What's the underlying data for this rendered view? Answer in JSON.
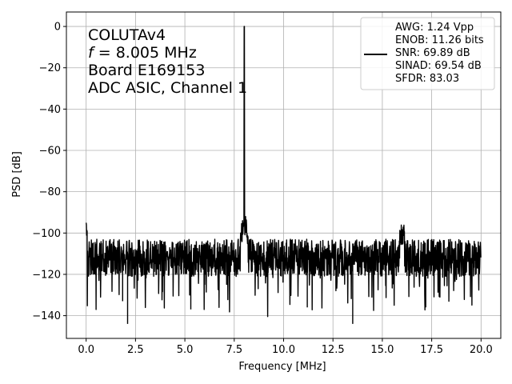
{
  "chart_data": {
    "type": "line",
    "title": "",
    "xlabel": "Frequency [MHz]",
    "ylabel": "PSD [dB]",
    "xlim": [
      -1.0,
      21.0
    ],
    "ylim": [
      -151,
      7
    ],
    "grid": true,
    "xticks": [
      0.0,
      2.5,
      5.0,
      7.5,
      10.0,
      12.5,
      15.0,
      17.5,
      20.0
    ],
    "xtick_labels": [
      "0.0",
      "2.5",
      "5.0",
      "7.5",
      "10.0",
      "12.5",
      "15.0",
      "17.5",
      "20.0"
    ],
    "yticks": [
      0,
      -20,
      -40,
      -60,
      -80,
      -100,
      -120,
      -140
    ],
    "ytick_labels": [
      "0",
      "−20",
      "−40",
      "−60",
      "−80",
      "−100",
      "−120",
      "−140"
    ],
    "annotation_lines": [
      "COLUTAv4",
      "f = 8.005 MHz",
      "Board E169153",
      "ADC ASIC, Channel  1"
    ],
    "legend_placement": "top-right",
    "legend_lines": [
      "AWG: 1.24 Vpp",
      "ENOB: 11.26 bits",
      "SNR: 69.89 dB",
      "SINAD: 69.54 dB",
      "SFDR: 83.03"
    ],
    "series": [
      {
        "color": "#000000",
        "x": [
          0.0,
          0.04,
          0.08,
          0.12,
          0.18,
          0.25,
          0.35,
          0.5,
          0.7,
          1.0,
          1.3,
          1.6,
          1.9,
          2.1,
          2.3,
          2.6,
          3.0,
          3.5,
          4.0,
          4.5,
          5.0,
          5.5,
          6.0,
          6.5,
          7.0,
          7.4,
          7.6,
          7.75,
          7.85,
          7.95,
          7.99,
          8.005,
          8.02,
          8.06,
          8.15,
          8.3,
          8.5,
          9.0,
          9.5,
          10.0,
          10.5,
          11.0,
          11.5,
          12.0,
          12.5,
          13.0,
          13.5,
          14.0,
          14.5,
          15.0,
          15.5,
          15.8,
          15.95,
          16.01,
          16.07,
          16.2,
          16.5,
          17.0,
          17.5,
          18.0,
          18.5,
          19.0,
          19.5,
          20.0
        ],
        "y": [
          -94,
          -121,
          -98,
          -118,
          -103,
          -121,
          -106,
          -117,
          -104,
          -121,
          -108,
          -118,
          -110,
          -144,
          -112,
          -120,
          -108,
          -122,
          -110,
          -120,
          -110,
          -121,
          -109,
          -120,
          -107,
          -110,
          -104,
          -99,
          -93,
          -104,
          -88,
          0,
          -88,
          -104,
          -99,
          -110,
          -118,
          -112,
          -120,
          -108,
          -121,
          -110,
          -119,
          -108,
          -122,
          -110,
          -144,
          -110,
          -120,
          -108,
          -112,
          -104,
          -99,
          -93,
          -102,
          -108,
          -120,
          -110,
          -121,
          -108,
          -120,
          -110,
          -118,
          -109
        ]
      }
    ]
  }
}
